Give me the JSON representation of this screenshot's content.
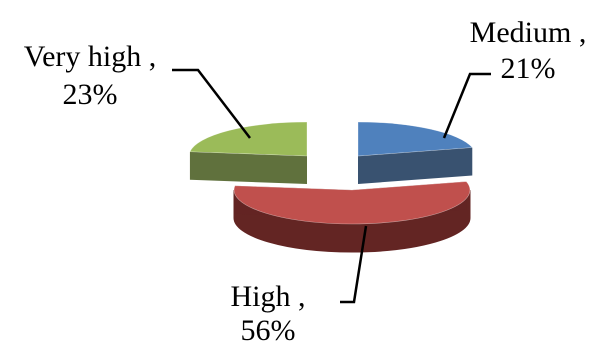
{
  "chart_data": {
    "type": "pie",
    "style": "3d-exploded",
    "title": "",
    "legend": "none",
    "slices": [
      {
        "category": "Medium",
        "value": 21,
        "label_name": "Medium ,",
        "label_value": "21%",
        "color": "#4f81bd",
        "side_color": "#243f60"
      },
      {
        "category": "High",
        "value": 56,
        "label_name": "High ,",
        "label_value": "56%",
        "color": "#c0504d",
        "side_color": "#632523"
      },
      {
        "category": "Very high",
        "value": 23,
        "label_name": "Very high ,",
        "label_value": "23%",
        "color": "#9bbb59",
        "side_color": "#4f6228"
      }
    ]
  }
}
